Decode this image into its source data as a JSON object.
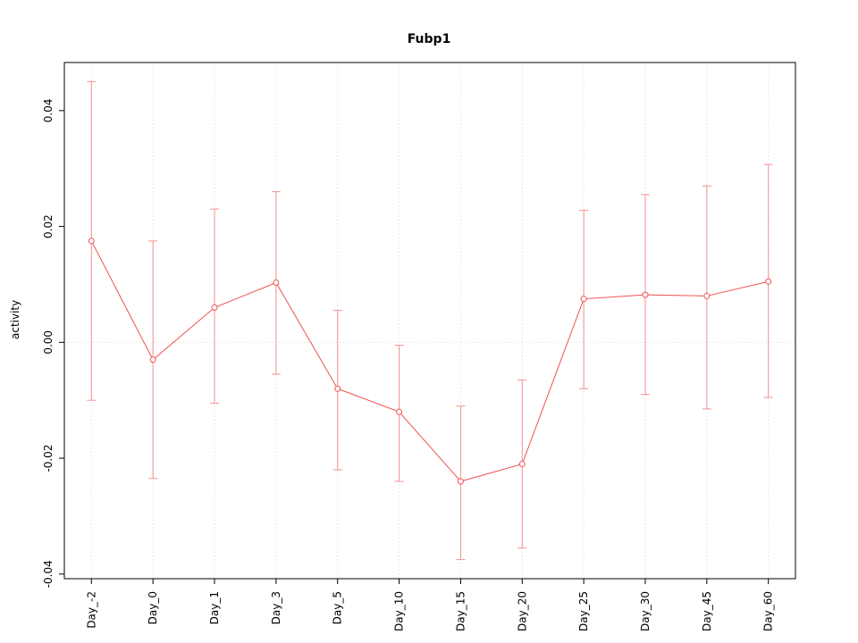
{
  "chart_data": {
    "type": "line",
    "title": "Fubp1",
    "xlabel": "",
    "ylabel": "activity",
    "categories": [
      "Day_-2",
      "Day_0",
      "Day_1",
      "Day_3",
      "Day_5",
      "Day_10",
      "Day_15",
      "Day_20",
      "Day_25",
      "Day_30",
      "Day_45",
      "Day_60"
    ],
    "series": [
      {
        "name": "activity",
        "values": [
          0.0175,
          -0.003,
          0.006,
          0.0103,
          -0.008,
          -0.012,
          -0.024,
          -0.021,
          0.0075,
          0.0082,
          0.008,
          0.0105
        ],
        "upper": [
          0.045,
          0.0175,
          0.023,
          0.026,
          0.0055,
          -0.0005,
          -0.011,
          -0.0065,
          0.0228,
          0.0255,
          0.027,
          0.0307
        ],
        "lower": [
          -0.01,
          -0.0235,
          -0.0105,
          -0.0055,
          -0.022,
          -0.024,
          -0.0375,
          -0.0355,
          -0.008,
          -0.009,
          -0.0115,
          -0.0095
        ]
      }
    ],
    "yticks": [
      -0.04,
      -0.02,
      0.0,
      0.02,
      0.04
    ],
    "ytick_labels": [
      "-0.04",
      "-0.02",
      "0.00",
      "0.02",
      "0.04"
    ],
    "ylim": [
      -0.0408,
      0.0483
    ],
    "grid": "dotted vertical line at each category; dotted horizontal line at y=0",
    "legend_position": "none",
    "line_color": "#f05050",
    "errorbar_color": "#f59090",
    "grid_color": "#d9d9d9",
    "axis_color": "#000000",
    "marker": "open-circle"
  }
}
